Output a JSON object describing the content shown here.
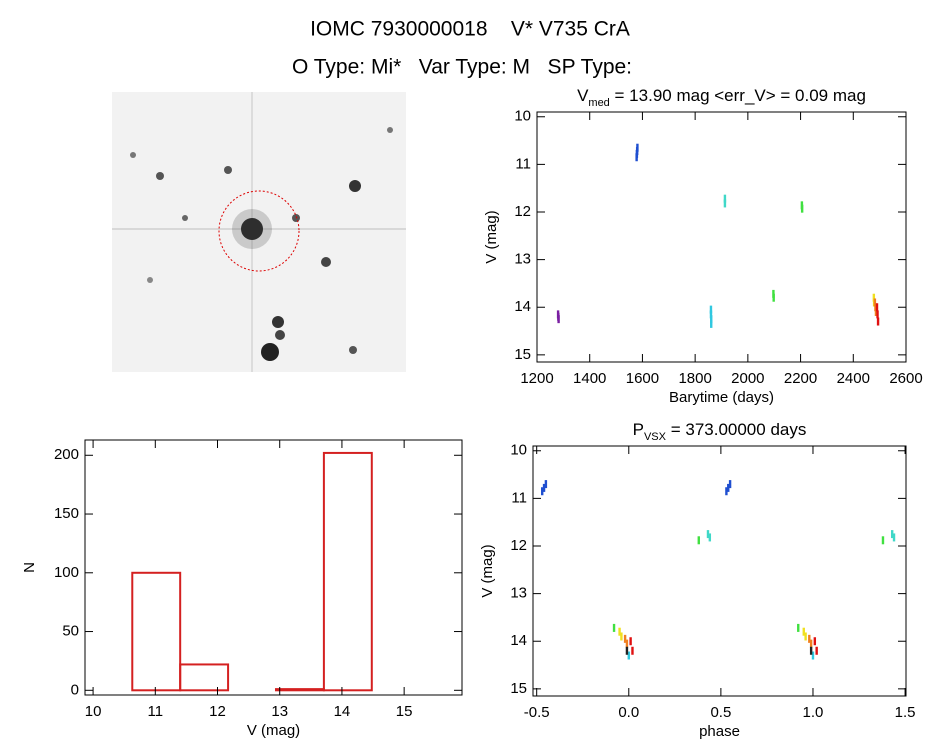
{
  "header": {
    "title": "IOMC 7930000018    V* V735 CrA",
    "subtitle": "O Type: Mi*   Var Type: M   SP Type:"
  },
  "chart_data": [
    {
      "type": "scatter",
      "title": {
        "main": "V",
        "sub": "med",
        "rest": " = 13.90 mag <err_V> = 0.09 mag"
      },
      "xlabel": "Barytime (days)",
      "ylabel": "V (mag)",
      "xlim": [
        1200,
        2600
      ],
      "xticks": [
        1200,
        1400,
        1600,
        1800,
        2000,
        2200,
        2400,
        2600
      ],
      "ylim": [
        15.15,
        9.9
      ],
      "yticks": [
        10,
        11,
        12,
        13,
        14,
        15
      ],
      "grid": false,
      "series": [
        {
          "color": "#7a1fa2",
          "x": [
            1280,
            1281,
            1282
          ],
          "values": [
            14.15,
            14.2,
            14.25
          ]
        },
        {
          "color": "#1f4fd0",
          "x": [
            1578,
            1579,
            1580,
            1581
          ],
          "values": [
            10.85,
            10.78,
            10.72,
            10.65
          ]
        },
        {
          "color": "#30c8e0",
          "x": [
            1860,
            1860,
            1861,
            1861
          ],
          "values": [
            14.05,
            14.15,
            14.25,
            14.35
          ]
        },
        {
          "color": "#40d8c8",
          "x": [
            1913,
            1913
          ],
          "values": [
            11.72,
            11.82
          ]
        },
        {
          "color": "#40e040",
          "x": [
            2097,
            2098,
            2205,
            2206
          ],
          "values": [
            13.72,
            13.8,
            11.86,
            11.93
          ]
        },
        {
          "color": "#f0e020",
          "x": [
            2478,
            2479
          ],
          "values": [
            13.8,
            13.9
          ]
        },
        {
          "color": "#f08020",
          "x": [
            2482,
            2484,
            2486
          ],
          "values": [
            13.9,
            14.0,
            14.1
          ]
        },
        {
          "color": "#e01010",
          "x": [
            2490,
            2492,
            2494
          ],
          "values": [
            14.0,
            14.15,
            14.3
          ]
        }
      ]
    },
    {
      "type": "histogram",
      "xlabel": "V (mag)",
      "ylabel": "N",
      "xlim": [
        9.87,
        15.93
      ],
      "xticks": [
        10,
        11,
        12,
        13,
        14,
        15
      ],
      "ylim": [
        -4,
        213
      ],
      "yticks": [
        0,
        50,
        100,
        150,
        200
      ],
      "grid": false,
      "color": "#d42020",
      "bins": [
        10.63,
        11.4,
        12.17,
        12.94,
        13.71,
        14.48
      ],
      "values": [
        100,
        22,
        0,
        1,
        202
      ]
    },
    {
      "type": "scatter",
      "title": {
        "main": "P",
        "sub": "VSX",
        "rest": " = 373.00000 days"
      },
      "xlabel": "phase",
      "ylabel": "V (mag)",
      "xlim": [
        -0.52,
        1.505
      ],
      "xticks": [
        -0.5,
        {
          "value": 0,
          "label": "0.0"
        },
        0.5,
        {
          "value": 1,
          "label": "1.0"
        },
        1.5
      ],
      "ylim": [
        15.15,
        9.9
      ],
      "yticks": [
        10,
        11,
        12,
        13,
        14,
        15
      ],
      "grid": false,
      "series": [
        {
          "color": "#1f4fd0",
          "x": [
            -0.47,
            -0.46,
            -0.45,
            0.53,
            0.54,
            0.55
          ],
          "values": [
            10.85,
            10.78,
            10.7,
            10.85,
            10.78,
            10.7
          ]
        },
        {
          "color": "#40d8c8",
          "x": [
            0.43,
            0.44,
            1.43,
            1.44
          ],
          "values": [
            11.75,
            11.82,
            11.75,
            11.82
          ]
        },
        {
          "color": "#40e040",
          "x": [
            0.38,
            1.38,
            -0.08,
            0.92
          ],
          "values": [
            11.88,
            11.88,
            13.72,
            13.72
          ]
        },
        {
          "color": "#f0e020",
          "x": [
            -0.05,
            -0.04,
            0.95,
            0.96
          ],
          "values": [
            13.8,
            13.9,
            13.8,
            13.9
          ]
        },
        {
          "color": "#f08020",
          "x": [
            -0.02,
            -0.01,
            0.98,
            0.99
          ],
          "values": [
            13.95,
            14.05,
            13.95,
            14.05
          ]
        },
        {
          "color": "#e01010",
          "x": [
            0.01,
            0.02,
            1.01,
            1.02
          ],
          "values": [
            14.0,
            14.2,
            14.0,
            14.2
          ]
        },
        {
          "color": "#30c8e0",
          "x": [
            0.0,
            1.0
          ],
          "values": [
            14.3,
            14.3
          ]
        },
        {
          "color": "#222222",
          "x": [
            -0.01,
            0.99
          ],
          "values": [
            14.2,
            14.2
          ]
        }
      ]
    }
  ]
}
